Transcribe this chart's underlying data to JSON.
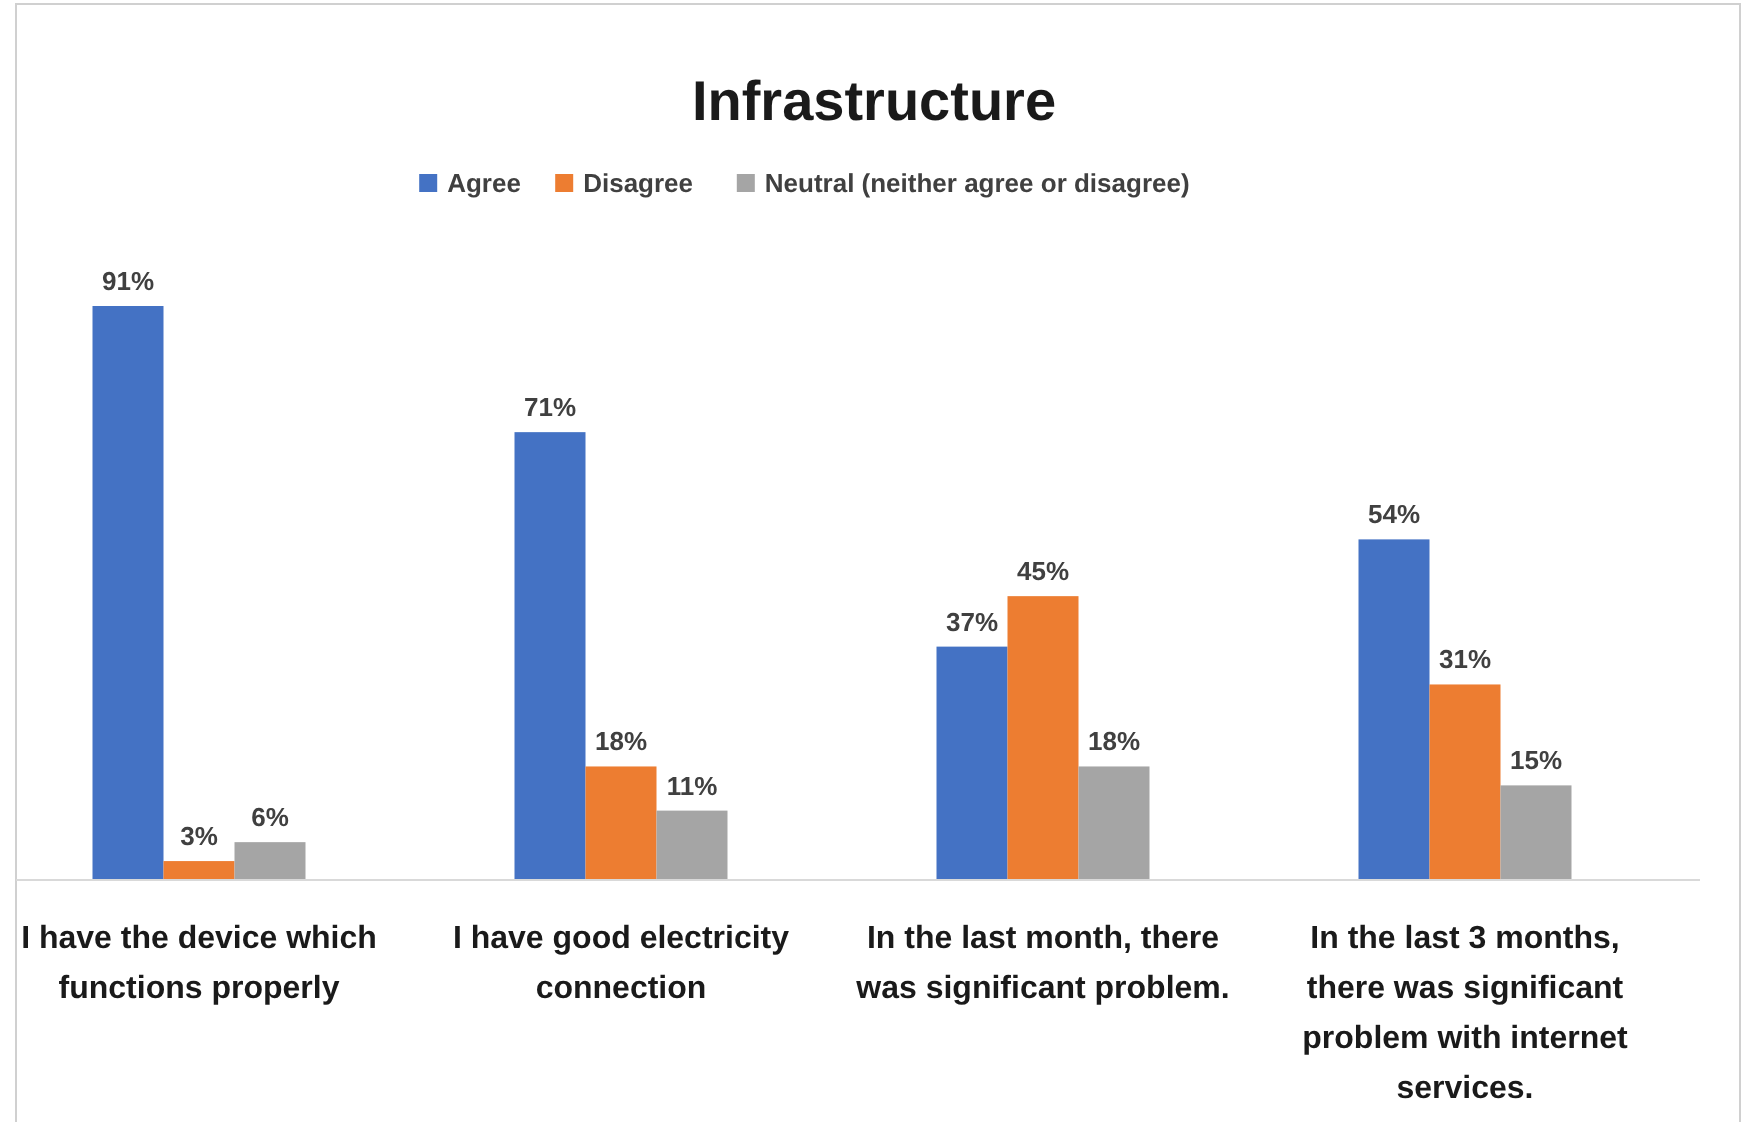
{
  "chart_data": {
    "type": "bar",
    "title": "Infrastructure",
    "legend": "top",
    "categories": [
      "I have the device which functions properly",
      "I have good electricity connection",
      "In the last month, there was significant problem.",
      "In the last 3 months, there was significant problem with internet services."
    ],
    "series": [
      {
        "name": "Agree",
        "color": "#4472c4",
        "values": [
          91,
          71,
          37,
          54
        ],
        "value_labels": [
          "91%",
          "71%",
          "37%",
          "54%"
        ]
      },
      {
        "name": "Disagree",
        "color": "#ed7d31",
        "values": [
          3,
          18,
          45,
          31
        ],
        "value_labels": [
          "3%",
          "18%",
          "45%",
          "31%"
        ]
      },
      {
        "name": "Neutral (neither agree or disagree)",
        "color": "#a5a5a5",
        "values": [
          6,
          11,
          18,
          15
        ],
        "value_labels": [
          "6%",
          "11%",
          "18%",
          "15%"
        ]
      }
    ]
  }
}
